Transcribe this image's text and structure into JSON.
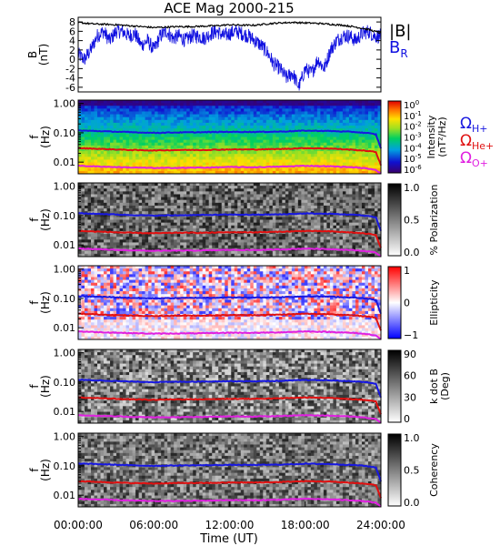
{
  "title": "ACE Mag 2000-215",
  "x_axis": {
    "label": "Time (UT)",
    "ticks": [
      "00:00:00",
      "06:00:00",
      "12:00:00",
      "18:00:00",
      "24:00:00"
    ],
    "tick_hours": [
      0,
      6,
      12,
      18,
      24
    ],
    "range_hours": [
      0,
      24
    ]
  },
  "chart_data": [
    {
      "type": "line",
      "panel": "field",
      "ylabel": [
        "B",
        "(nT)"
      ],
      "ylim": [
        -7,
        9
      ],
      "yticks": [
        -6,
        -4,
        -2,
        0,
        2,
        4,
        6,
        8
      ],
      "legend": [
        {
          "text": "|B|",
          "sub": "",
          "color": "#000000"
        },
        {
          "text": "B",
          "sub": "R",
          "color": "#1010e0"
        }
      ],
      "series": [
        {
          "name": "|B|",
          "color": "#000000",
          "x_hours": [
            0,
            1,
            2,
            3,
            4,
            5,
            6,
            7,
            8,
            9,
            10,
            11,
            12,
            13,
            14,
            15,
            16,
            17,
            18,
            19,
            20,
            21,
            22,
            23,
            24
          ],
          "values": [
            7.9,
            7.6,
            7.5,
            7.4,
            7.2,
            7.0,
            6.8,
            6.9,
            7.0,
            7.0,
            7.1,
            7.2,
            7.4,
            7.3,
            7.3,
            7.6,
            7.8,
            7.9,
            7.8,
            7.7,
            7.5,
            7.3,
            6.9,
            6.4,
            5.6
          ]
        },
        {
          "name": "B",
          "color": "#1010e0",
          "x_hours": [
            0,
            0.5,
            1,
            1.5,
            2,
            2.5,
            3,
            3.5,
            4,
            4.5,
            5,
            5.5,
            6,
            6.5,
            7,
            7.5,
            8,
            8.5,
            9,
            9.5,
            10,
            10.5,
            11,
            11.5,
            12,
            12.5,
            13,
            13.5,
            14,
            14.5,
            15,
            15.5,
            16,
            16.5,
            17,
            17.5,
            18,
            18.5,
            19,
            19.5,
            20,
            20.5,
            21,
            21.5,
            22,
            22.5,
            23,
            23.5,
            24
          ],
          "values": [
            1,
            0,
            2,
            5,
            6,
            4,
            6,
            6,
            5,
            5.5,
            3,
            4,
            2,
            5,
            6,
            4.5,
            5,
            4,
            5,
            5,
            4.5,
            5.5,
            6,
            5,
            5.5,
            6,
            5.5,
            5,
            4,
            3,
            1.5,
            -1,
            -2,
            -4,
            -3,
            -6,
            -2,
            -3,
            0,
            -2,
            2,
            4,
            5,
            5,
            4,
            5.5,
            6,
            5,
            5
          ]
        }
      ]
    },
    {
      "type": "heatmap",
      "panel": "intensity",
      "ylabel": [
        "f",
        "(Hz)"
      ],
      "yscale": "log",
      "ylim": [
        0.004,
        1.3
      ],
      "yticks": [
        "1.00",
        "0.10",
        "0.01"
      ],
      "colorbar": {
        "label": [
          "Intensity",
          "(nT²/Hz)"
        ],
        "ticks": [
          {
            "base": "10",
            "exp": "0"
          },
          {
            "base": "10",
            "exp": "-1"
          },
          {
            "base": "10",
            "exp": "-2"
          },
          {
            "base": "10",
            "exp": "-3"
          },
          {
            "base": "10",
            "exp": "-4"
          },
          {
            "base": "10",
            "exp": "-5"
          },
          {
            "base": "10",
            "exp": "-6"
          }
        ],
        "colormap": "rainbow"
      },
      "gyro_legend": [
        {
          "text": "Ω",
          "sub": "H+",
          "color": "#1818e0"
        },
        {
          "text": "Ω",
          "sub": "He+",
          "color": "#e01010"
        },
        {
          "text": "Ω",
          "sub": "O+",
          "color": "#e020e0"
        }
      ]
    },
    {
      "type": "heatmap",
      "panel": "polarization",
      "ylabel": [
        "f",
        "(Hz)"
      ],
      "yscale": "log",
      "ylim": [
        0.004,
        1.3
      ],
      "yticks": [
        "1.00",
        "0.10",
        "0.01"
      ],
      "colorbar": {
        "label": [
          "% Polarization"
        ],
        "ticks": [
          "1.0",
          "0.5",
          "0.0"
        ],
        "range": [
          0,
          1
        ],
        "colormap": "gray"
      }
    },
    {
      "type": "heatmap",
      "panel": "ellipticity",
      "ylabel": [
        "f",
        "(Hz)"
      ],
      "yscale": "log",
      "ylim": [
        0.004,
        1.3
      ],
      "yticks": [
        "1.00",
        "0.10",
        "0.01"
      ],
      "colorbar": {
        "label": [
          "Ellipticity"
        ],
        "ticks": [
          "1",
          "0",
          "−1"
        ],
        "range": [
          -1,
          1
        ],
        "colormap": "blue-white-red"
      }
    },
    {
      "type": "heatmap",
      "panel": "kdotb",
      "ylabel": [
        "f",
        "(Hz)"
      ],
      "yscale": "log",
      "ylim": [
        0.004,
        1.3
      ],
      "yticks": [
        "1.00",
        "0.10",
        "0.01"
      ],
      "colorbar": {
        "label": [
          "k dot B",
          "(Deg)"
        ],
        "ticks": [
          "90",
          "60",
          "30",
          "0"
        ],
        "range": [
          0,
          90
        ],
        "colormap": "gray"
      }
    },
    {
      "type": "heatmap",
      "panel": "coherency",
      "ylabel": [
        "f",
        "(Hz)"
      ],
      "yscale": "log",
      "ylim": [
        0.004,
        1.3
      ],
      "yticks": [
        "1.00",
        "0.10",
        "0.01"
      ],
      "colorbar": {
        "label": [
          "Coherency"
        ],
        "ticks": [
          "1.0",
          "0.5",
          "0.0"
        ],
        "range": [
          0,
          1
        ],
        "colormap": "gray"
      }
    }
  ],
  "gyrofrequency_lines": [
    {
      "ion": "H+",
      "color": "#1818e0",
      "x_hours": [
        0,
        2,
        4,
        6,
        8,
        10,
        12,
        14,
        16,
        18,
        20,
        22,
        23,
        23.6,
        24
      ],
      "values_hz": [
        0.12,
        0.113,
        0.105,
        0.1,
        0.103,
        0.105,
        0.108,
        0.107,
        0.11,
        0.118,
        0.115,
        0.106,
        0.097,
        0.088,
        0.03
      ]
    },
    {
      "ion": "He+",
      "color": "#e01010",
      "x_hours": [
        0,
        2,
        4,
        6,
        8,
        10,
        12,
        14,
        16,
        18,
        20,
        22,
        23,
        23.6,
        24
      ],
      "values_hz": [
        0.03,
        0.028,
        0.026,
        0.025,
        0.026,
        0.026,
        0.027,
        0.027,
        0.028,
        0.03,
        0.029,
        0.026,
        0.024,
        0.022,
        0.008
      ]
    },
    {
      "ion": "O+",
      "color": "#e020e0",
      "x_hours": [
        0,
        2,
        4,
        6,
        8,
        10,
        12,
        14,
        16,
        18,
        20,
        22,
        23,
        23.6,
        24
      ],
      "values_hz": [
        0.0075,
        0.007,
        0.0066,
        0.0063,
        0.0064,
        0.0065,
        0.0068,
        0.0067,
        0.007,
        0.0075,
        0.0072,
        0.0066,
        0.006,
        0.0055,
        0.004
      ]
    }
  ]
}
